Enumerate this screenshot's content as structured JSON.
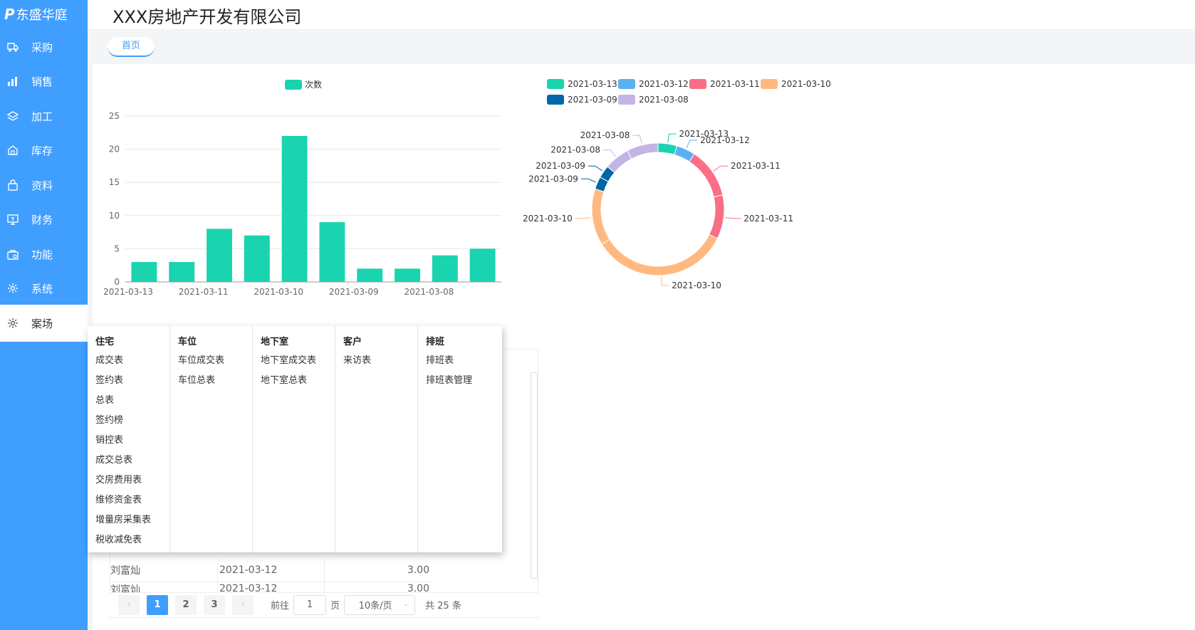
{
  "brand": {
    "logo_mark": "P",
    "name": "东盛华庭"
  },
  "header": {
    "title": "XXX房地产开发有限公司"
  },
  "tabs": [
    {
      "label": "首页"
    }
  ],
  "sidebar": {
    "items": [
      {
        "label": "采购",
        "icon": "truck-icon"
      },
      {
        "label": "销售",
        "icon": "bar-chart-icon"
      },
      {
        "label": "加工",
        "icon": "layers-icon"
      },
      {
        "label": "库存",
        "icon": "home-icon"
      },
      {
        "label": "资料",
        "icon": "bag-icon"
      },
      {
        "label": "财务",
        "icon": "monitor-icon"
      },
      {
        "label": "功能",
        "icon": "briefcase-icon"
      },
      {
        "label": "系统",
        "icon": "gear-icon"
      },
      {
        "label": "案场",
        "icon": "gear-icon",
        "active": true
      }
    ]
  },
  "dropdown": {
    "columns": [
      {
        "title": "住宅",
        "links": [
          "成交表",
          "签约表",
          "总表",
          "签约榜",
          "销控表",
          "成交总表",
          "交房费用表",
          "维修资金表",
          "增量房采集表",
          "税收减免表"
        ]
      },
      {
        "title": "车位",
        "links": [
          "车位成交表",
          "车位总表"
        ]
      },
      {
        "title": "地下室",
        "links": [
          "地下室成交表",
          "地下室总表"
        ]
      },
      {
        "title": "客户",
        "links": [
          "来访表"
        ]
      },
      {
        "title": "排班",
        "links": [
          "排班表",
          "排班表管理"
        ]
      }
    ]
  },
  "table": {
    "rows": [
      [
        "刘富灿",
        "2021-03-12",
        "3.00"
      ],
      [
        "刘富灿",
        "2021-03-12",
        "3.00"
      ]
    ]
  },
  "pagination": {
    "prev": "‹",
    "next": "›",
    "pages": [
      "1",
      "2",
      "3"
    ],
    "goto_prefix": "前往",
    "goto_value": "1",
    "goto_suffix": "页",
    "page_size": "10条/页",
    "total": "共 25 条"
  },
  "colors": {
    "sidebar": "#409eff",
    "bar": "#19d4ae",
    "accent": "#409eff"
  },
  "chart_data": [
    {
      "type": "bar",
      "legend": [
        "次数"
      ],
      "categories": [
        "2021-03-13",
        "",
        "2021-03-11",
        "",
        "2021-03-10",
        "",
        "2021-03-09",
        "",
        "2021-03-08",
        ""
      ],
      "tick_labels": [
        "2021-03-13",
        "2021-03-11",
        "2021-03-10",
        "2021-03-09",
        "2021-03-08"
      ],
      "series": [
        {
          "name": "次数",
          "values": [
            3,
            3,
            8,
            7,
            22,
            9,
            2,
            2,
            4,
            5
          ],
          "color": "#19d4ae"
        }
      ],
      "y_ticks": [
        "0",
        "5",
        "10",
        "15",
        "20",
        "25"
      ],
      "ylim": [
        0,
        25
      ],
      "grid": true,
      "legend_position": "top"
    },
    {
      "type": "pie",
      "donut": true,
      "legend_position": "top",
      "legend": [
        {
          "name": "2021-03-13",
          "color": "#19d4ae"
        },
        {
          "name": "2021-03-12",
          "color": "#5ab1ef"
        },
        {
          "name": "2021-03-11",
          "color": "#fa6e86"
        },
        {
          "name": "2021-03-10",
          "color": "#ffb980"
        },
        {
          "name": "2021-03-09",
          "color": "#0067a6"
        },
        {
          "name": "2021-03-08",
          "color": "#c4b4e4"
        }
      ],
      "slices": [
        {
          "name": "2021-03-13",
          "value": 3,
          "color": "#19d4ae"
        },
        {
          "name": "2021-03-12",
          "value": 3,
          "color": "#5ab1ef"
        },
        {
          "name": "2021-03-11",
          "value": 8,
          "color": "#fa6e86"
        },
        {
          "name": "2021-03-11",
          "value": 7,
          "color": "#fa6e86"
        },
        {
          "name": "2021-03-10",
          "value": 22,
          "color": "#ffb980"
        },
        {
          "name": "2021-03-10",
          "value": 9,
          "color": "#ffb980"
        },
        {
          "name": "2021-03-09",
          "value": 2,
          "color": "#0067a6"
        },
        {
          "name": "2021-03-09",
          "value": 2,
          "color": "#0067a6"
        },
        {
          "name": "2021-03-08",
          "value": 4,
          "color": "#c4b4e4"
        },
        {
          "name": "2021-03-08",
          "value": 5,
          "color": "#c4b4e4"
        }
      ]
    }
  ]
}
